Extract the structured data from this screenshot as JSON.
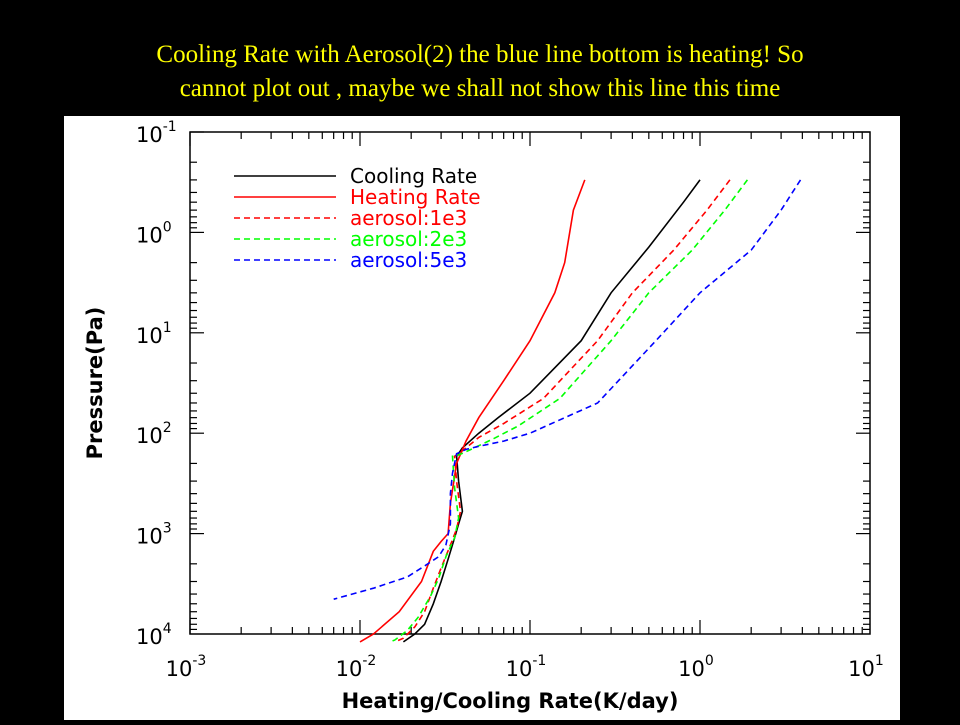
{
  "slide": {
    "title_lines": [
      "Cooling Rate with Aerosol(2) the blue line bottom is heating! So",
      "cannot plot out , maybe we shall not show this line this time"
    ]
  },
  "chart_data": {
    "type": "line",
    "xlabel": "Heating/Cooling Rate(K/day)",
    "ylabel": "Pressure(Pa)",
    "x_scale": "log",
    "y_scale": "log",
    "y_inverted": true,
    "xlim": [
      0.001,
      10
    ],
    "ylim": [
      0.1,
      10000
    ],
    "x_ticks": [
      {
        "value": 0.001,
        "base": "10",
        "exp": "-3"
      },
      {
        "value": 0.01,
        "base": "10",
        "exp": "-2"
      },
      {
        "value": 0.1,
        "base": "10",
        "exp": "-1"
      },
      {
        "value": 1,
        "base": "10",
        "exp": "0"
      },
      {
        "value": 10,
        "base": "10",
        "exp": "1"
      }
    ],
    "y_ticks": [
      {
        "value": 0.1,
        "base": "10",
        "exp": "-1"
      },
      {
        "value": 1,
        "base": "10",
        "exp": "0"
      },
      {
        "value": 10,
        "base": "10",
        "exp": "1"
      },
      {
        "value": 100,
        "base": "10",
        "exp": "2"
      },
      {
        "value": 1000,
        "base": "10",
        "exp": "3"
      },
      {
        "value": 10000,
        "base": "10",
        "exp": "4"
      }
    ],
    "legend_position": "top-left",
    "series": [
      {
        "name": "Cooling Rate",
        "color": "#000000",
        "dash": "solid",
        "points": [
          [
            1.0,
            0.3
          ],
          [
            0.8,
            0.5
          ],
          [
            0.5,
            1.4
          ],
          [
            0.3,
            4
          ],
          [
            0.2,
            12
          ],
          [
            0.1,
            40
          ],
          [
            0.065,
            70
          ],
          [
            0.05,
            100
          ],
          [
            0.04,
            140
          ],
          [
            0.037,
            170
          ],
          [
            0.038,
            300
          ],
          [
            0.04,
            600
          ],
          [
            0.038,
            800
          ],
          [
            0.036,
            1100
          ],
          [
            0.033,
            1800
          ],
          [
            0.03,
            3000
          ],
          [
            0.027,
            5000
          ],
          [
            0.024,
            8000
          ],
          [
            0.021,
            10000
          ],
          [
            0.018,
            12000
          ]
        ]
      },
      {
        "name": "Heating Rate",
        "color": "#ff0000",
        "dash": "solid",
        "points": [
          [
            0.21,
            0.3
          ],
          [
            0.18,
            0.6
          ],
          [
            0.16,
            2
          ],
          [
            0.14,
            4
          ],
          [
            0.1,
            12
          ],
          [
            0.07,
            30
          ],
          [
            0.05,
            70
          ],
          [
            0.042,
            120
          ],
          [
            0.037,
            200
          ],
          [
            0.034,
            500
          ],
          [
            0.033,
            1000
          ],
          [
            0.03,
            1200
          ],
          [
            0.027,
            1500
          ],
          [
            0.023,
            3000
          ],
          [
            0.017,
            6000
          ],
          [
            0.012,
            10000
          ],
          [
            0.01,
            12000
          ]
        ]
      },
      {
        "name": "aerosol:1e3",
        "color": "#ff0000",
        "dash": "dashed",
        "points": [
          [
            1.5,
            0.3
          ],
          [
            1.1,
            0.6
          ],
          [
            0.7,
            1.5
          ],
          [
            0.4,
            4
          ],
          [
            0.25,
            12
          ],
          [
            0.12,
            45
          ],
          [
            0.07,
            80
          ],
          [
            0.05,
            110
          ],
          [
            0.042,
            140
          ],
          [
            0.038,
            160
          ],
          [
            0.036,
            170
          ],
          [
            0.037,
            300
          ],
          [
            0.039,
            600
          ],
          [
            0.037,
            900
          ],
          [
            0.034,
            1300
          ],
          [
            0.03,
            2200
          ],
          [
            0.027,
            3500
          ],
          [
            0.024,
            6000
          ],
          [
            0.021,
            8500
          ],
          [
            0.018,
            11000
          ],
          [
            0.016,
            12000
          ]
        ]
      },
      {
        "name": "aerosol:2e3",
        "color": "#00ff00",
        "dash": "dashed",
        "points": [
          [
            1.9,
            0.3
          ],
          [
            1.4,
            0.6
          ],
          [
            0.9,
            1.5
          ],
          [
            0.5,
            4
          ],
          [
            0.3,
            12
          ],
          [
            0.15,
            45
          ],
          [
            0.085,
            85
          ],
          [
            0.06,
            115
          ],
          [
            0.045,
            145
          ],
          [
            0.038,
            165
          ],
          [
            0.035,
            170
          ],
          [
            0.036,
            350
          ],
          [
            0.038,
            700
          ],
          [
            0.036,
            1100
          ],
          [
            0.032,
            1700
          ],
          [
            0.029,
            2800
          ],
          [
            0.026,
            4200
          ],
          [
            0.022,
            6800
          ],
          [
            0.019,
            9200
          ],
          [
            0.016,
            11500
          ],
          [
            0.015,
            12000
          ]
        ]
      },
      {
        "name": "aerosol:5e3",
        "color": "#0000ff",
        "dash": "dashed",
        "points": [
          [
            3.9,
            0.3
          ],
          [
            3.0,
            0.6
          ],
          [
            2.0,
            1.5
          ],
          [
            1.0,
            4
          ],
          [
            0.55,
            12
          ],
          [
            0.25,
            50
          ],
          [
            0.1,
            100
          ],
          [
            0.07,
            120
          ],
          [
            0.05,
            135
          ],
          [
            0.042,
            145
          ],
          [
            0.037,
            160
          ],
          [
            0.035,
            250
          ],
          [
            0.034,
            400
          ],
          [
            0.034,
            800
          ],
          [
            0.032,
            1300
          ],
          [
            0.029,
            1700
          ],
          [
            0.024,
            2100
          ],
          [
            0.019,
            2700
          ],
          [
            0.012,
            3500
          ],
          [
            0.007,
            4500
          ]
        ]
      }
    ]
  }
}
